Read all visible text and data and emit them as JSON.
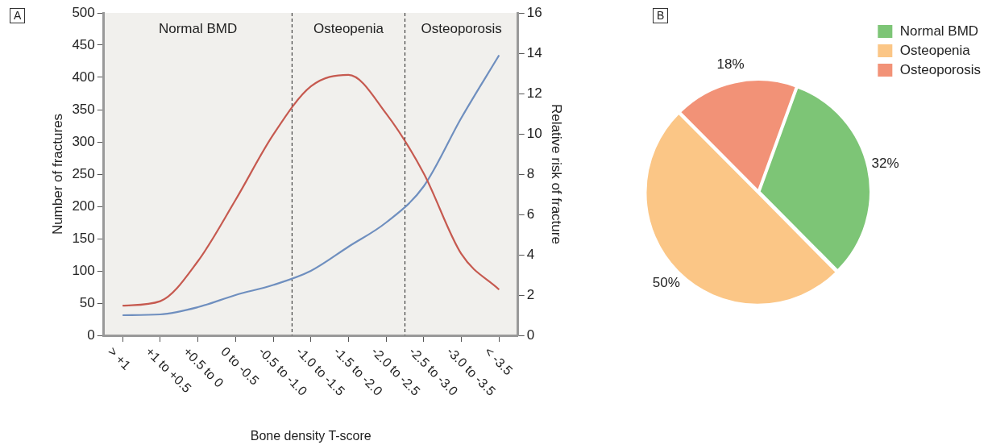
{
  "chart_data": [
    {
      "type": "line",
      "title": "A",
      "xlabel": "Bone density T-score",
      "ylabel": "Number of fractures",
      "y2label": "Relative risk of fracture",
      "categories": [
        "> +1",
        "+1 to +0.5",
        "+0.5 to 0",
        "0 to -0.5",
        "-0.5 to -1.0",
        "-1.0 to -1.5",
        "-1.5 to -2.0",
        "-2.0 to -2.5",
        "-2.5 to -3.0",
        "-3.0 to -3.5",
        "< -3.5"
      ],
      "series": [
        {
          "color": "#c65a50",
          "values": [
            46,
            53,
            115,
            210,
            311,
            386,
            404,
            344,
            251,
            126,
            71
          ]
        },
        {
          "color": "#6f8fbf",
          "axis": "y2",
          "values": [
            1.0,
            1.04,
            1.4,
            2.0,
            2.5,
            3.2,
            4.4,
            5.6,
            7.4,
            10.8,
            13.9
          ]
        }
      ],
      "ylim": [
        0,
        500
      ],
      "yticks": [
        0,
        50,
        100,
        150,
        200,
        250,
        300,
        350,
        400,
        450,
        500
      ],
      "y2lim": [
        0,
        16
      ],
      "y2ticks": [
        0,
        2,
        4,
        6,
        8,
        10,
        12,
        14,
        16
      ],
      "ref_lines": [
        {
          "axis": "x",
          "value": "-1.0 to -1.5",
          "color": "#222222",
          "line_style": "dashed"
        },
        {
          "axis": "x",
          "value": "-2.5 to -3.0",
          "color": "#222222",
          "line_style": "dashed"
        }
      ],
      "annotations": [
        "Normal BMD",
        "Osteopenia",
        "Osteoporosis"
      ],
      "legend": false,
      "marker": "none",
      "line_style": "solid"
    },
    {
      "type": "pie",
      "title": "B",
      "categories": [
        "Normal BMD",
        "Osteopenia",
        "Osteoporosis"
      ],
      "values": [
        32,
        50,
        18
      ],
      "colors": [
        "#7dc576",
        "#fbc686",
        "#f29277"
      ],
      "value_labels": [
        "32%",
        "50%",
        "18%"
      ],
      "legend": "top right"
    }
  ]
}
